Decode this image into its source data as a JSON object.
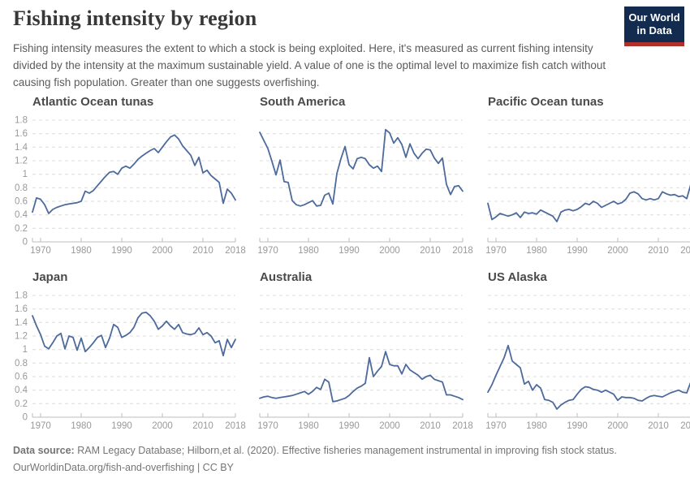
{
  "header": {
    "title": "Fishing intensity by region",
    "subtitle": "Fishing intensity measures the extent to which a stock is being exploited. Here, it's measured as current fishing intensity divided by the intensity at the maximum sustainable yield. A value of one is the optimal level to maximize fish catch without causing fish population. Greater than one suggests overfishing.",
    "logo": {
      "line1": "Our World",
      "line2": "in Data",
      "bg_color": "#122b4e",
      "accent_color": "#b0302c"
    }
  },
  "footer": {
    "datasource_label": "Data source:",
    "datasource_text": " RAM Legacy Database; Hilborn,et al. (2020). Effective fisheries management instrumental in improving fish stock status.",
    "link_text": "OurWorldinData.org/fish-and-overfishing | CC BY"
  },
  "chart_data": {
    "type": "line",
    "x_start": 1968,
    "x_end": 2018,
    "x_ticks": [
      1970,
      1980,
      1990,
      2000,
      2010,
      2018
    ],
    "ylim": [
      0,
      1.8
    ],
    "y_tick_step": 0.2,
    "grid": "dashed",
    "legend": "none",
    "style": {
      "line_color": "#4c6a9c",
      "grid_color": "#dcdcdc",
      "axis_color": "#bdbdbd",
      "tick_color": "#999999"
    },
    "panels": [
      {
        "title": "Atlantic Ocean tunas",
        "show_y_axis": true,
        "values": [
          0.44,
          0.65,
          0.63,
          0.55,
          0.42,
          0.48,
          0.51,
          0.53,
          0.55,
          0.56,
          0.57,
          0.58,
          0.6,
          0.75,
          0.72,
          0.76,
          0.83,
          0.9,
          0.97,
          1.03,
          1.04,
          1.0,
          1.09,
          1.12,
          1.09,
          1.15,
          1.22,
          1.27,
          1.31,
          1.35,
          1.38,
          1.32,
          1.4,
          1.48,
          1.55,
          1.58,
          1.52,
          1.42,
          1.35,
          1.28,
          1.13,
          1.25,
          1.02,
          1.06,
          0.98,
          0.93,
          0.88,
          0.57,
          0.78,
          0.72,
          0.62
        ]
      },
      {
        "title": "South America",
        "show_y_axis": false,
        "values": [
          1.62,
          1.5,
          1.38,
          1.19,
          0.99,
          1.21,
          0.89,
          0.88,
          0.61,
          0.55,
          0.53,
          0.55,
          0.58,
          0.61,
          0.53,
          0.54,
          0.69,
          0.72,
          0.56,
          1.01,
          1.23,
          1.41,
          1.14,
          1.08,
          1.23,
          1.25,
          1.23,
          1.14,
          1.09,
          1.12,
          1.04,
          1.66,
          1.61,
          1.46,
          1.54,
          1.44,
          1.25,
          1.45,
          1.31,
          1.23,
          1.31,
          1.37,
          1.36,
          1.24,
          1.16,
          1.24,
          0.85,
          0.7,
          0.82,
          0.83,
          0.75
        ]
      },
      {
        "title": "Pacific Ocean tunas",
        "show_y_axis": false,
        "values": [
          0.57,
          0.33,
          0.37,
          0.42,
          0.4,
          0.38,
          0.4,
          0.43,
          0.36,
          0.44,
          0.42,
          0.43,
          0.41,
          0.47,
          0.44,
          0.41,
          0.38,
          0.3,
          0.44,
          0.47,
          0.48,
          0.46,
          0.48,
          0.52,
          0.57,
          0.55,
          0.6,
          0.57,
          0.51,
          0.54,
          0.57,
          0.6,
          0.56,
          0.58,
          0.63,
          0.72,
          0.74,
          0.71,
          0.64,
          0.62,
          0.64,
          0.62,
          0.64,
          0.74,
          0.71,
          0.69,
          0.7,
          0.67,
          0.68,
          0.64,
          0.85
        ]
      },
      {
        "title": "Japan",
        "show_y_axis": true,
        "values": [
          1.5,
          1.35,
          1.22,
          1.05,
          1.01,
          1.1,
          1.2,
          1.24,
          1.01,
          1.2,
          1.18,
          0.99,
          1.17,
          0.97,
          1.03,
          1.1,
          1.18,
          1.21,
          1.03,
          1.17,
          1.37,
          1.33,
          1.18,
          1.21,
          1.25,
          1.33,
          1.47,
          1.54,
          1.55,
          1.5,
          1.42,
          1.3,
          1.35,
          1.42,
          1.35,
          1.3,
          1.37,
          1.25,
          1.23,
          1.22,
          1.24,
          1.32,
          1.22,
          1.25,
          1.2,
          1.1,
          1.13,
          0.91,
          1.15,
          1.03,
          1.15
        ]
      },
      {
        "title": "Australia",
        "show_y_axis": false,
        "values": [
          0.28,
          0.3,
          0.31,
          0.29,
          0.28,
          0.29,
          0.3,
          0.31,
          0.32,
          0.34,
          0.36,
          0.38,
          0.34,
          0.38,
          0.44,
          0.41,
          0.56,
          0.52,
          0.23,
          0.24,
          0.26,
          0.28,
          0.32,
          0.38,
          0.43,
          0.46,
          0.5,
          0.88,
          0.6,
          0.68,
          0.75,
          0.97,
          0.78,
          0.76,
          0.76,
          0.64,
          0.78,
          0.7,
          0.66,
          0.62,
          0.56,
          0.6,
          0.62,
          0.56,
          0.54,
          0.52,
          0.33,
          0.33,
          0.31,
          0.29,
          0.26
        ]
      },
      {
        "title": "US Alaska",
        "show_y_axis": false,
        "values": [
          0.37,
          0.48,
          0.62,
          0.75,
          0.88,
          1.06,
          0.83,
          0.78,
          0.73,
          0.49,
          0.53,
          0.4,
          0.48,
          0.43,
          0.26,
          0.25,
          0.22,
          0.12,
          0.18,
          0.22,
          0.25,
          0.26,
          0.34,
          0.41,
          0.45,
          0.44,
          0.41,
          0.4,
          0.37,
          0.4,
          0.37,
          0.34,
          0.25,
          0.3,
          0.29,
          0.29,
          0.28,
          0.25,
          0.24,
          0.28,
          0.31,
          0.32,
          0.31,
          0.3,
          0.33,
          0.36,
          0.38,
          0.4,
          0.37,
          0.36,
          0.52
        ]
      }
    ]
  }
}
